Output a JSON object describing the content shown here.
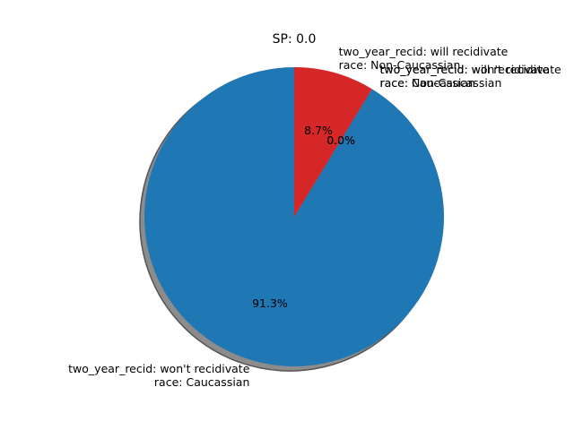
{
  "chart_data": {
    "type": "pie",
    "title": "SP: 0.0",
    "slices": [
      {
        "label": [
          "two_year_recid: won't recidivate",
          "race: Caucassian"
        ],
        "value": 91.3,
        "pct_label": "91.3%",
        "color": "#1f77b4"
      },
      {
        "label": [
          "two_year_recid: won't recidivate",
          "race: Non-Caucassian"
        ],
        "value": 0.0,
        "pct_label": "0.0%",
        "color": "#ff7f0e"
      },
      {
        "label": [
          "two_year_recid: will recidivate",
          "race: Caucassian"
        ],
        "value": 0.0,
        "pct_label": "0.0%",
        "color": "#2ca02c"
      },
      {
        "label": [
          "two_year_recid: will recidivate",
          "race: Non-Caucassian"
        ],
        "value": 8.7,
        "pct_label": "8.7%",
        "color": "#d62728"
      }
    ],
    "start_angle_deg": 90,
    "direction": "counterclockwise",
    "shadow": true,
    "legend": "none"
  }
}
